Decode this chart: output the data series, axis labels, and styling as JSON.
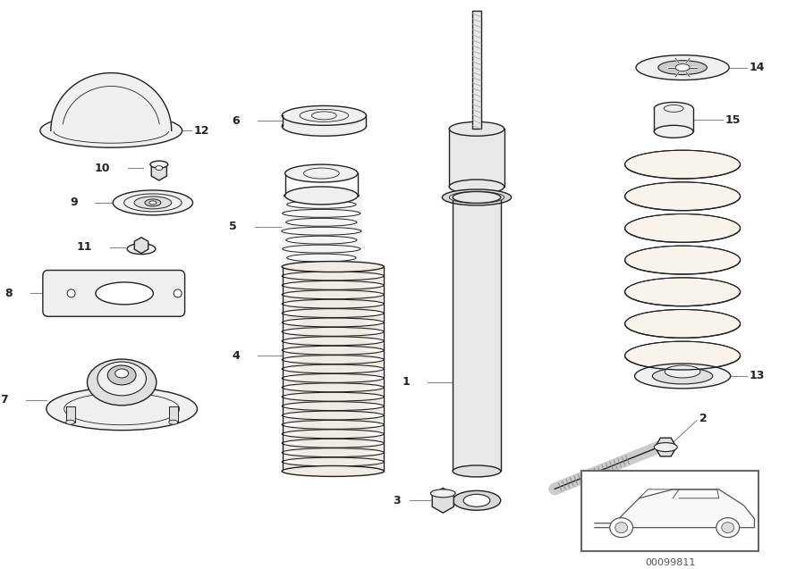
{
  "background_color": "#ffffff",
  "line_color": "#222222",
  "fill_light": "#f0f0f0",
  "fill_mid": "#e0e0e0",
  "fill_dark": "#cccccc",
  "fig_width": 9.0,
  "fig_height": 6.37,
  "dpi": 100,
  "diagram_id": "00099811"
}
